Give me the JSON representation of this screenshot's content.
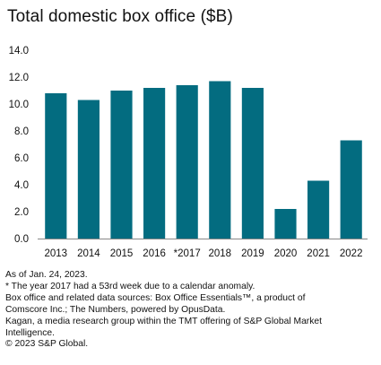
{
  "title": "Total domestic box office ($B)",
  "notes": [
    "As of Jan. 24, 2023.",
    "* The year 2017 had a 53rd week due to a calendar anomaly.",
    "Box office and related data sources: Box Office Essentials™, a product of",
    "Comscore Inc.; The Numbers, powered by OpusData.",
    "Kagan, a media research group within the TMT offering of S&P Global Market",
    "Intelligence.",
    "© 2023 S&P Global."
  ],
  "colors": {
    "bar": "#036c80",
    "axis": "#888888",
    "text": "#111111"
  },
  "chart_data": {
    "type": "bar",
    "categories": [
      "2013",
      "2014",
      "2015",
      "2016",
      "*2017",
      "2018",
      "2019",
      "2020",
      "2021",
      "2022"
    ],
    "values": [
      10.8,
      10.3,
      11.0,
      11.2,
      11.4,
      11.7,
      11.2,
      2.2,
      4.3,
      7.3
    ],
    "title": "Total domestic box office ($B)",
    "xlabel": "",
    "ylabel": "",
    "ylim": [
      0,
      14
    ],
    "yticks": [
      "0.0",
      "2.0",
      "4.0",
      "6.0",
      "8.0",
      "10.0",
      "12.0",
      "14.0"
    ],
    "grid": false,
    "legend": "none"
  }
}
